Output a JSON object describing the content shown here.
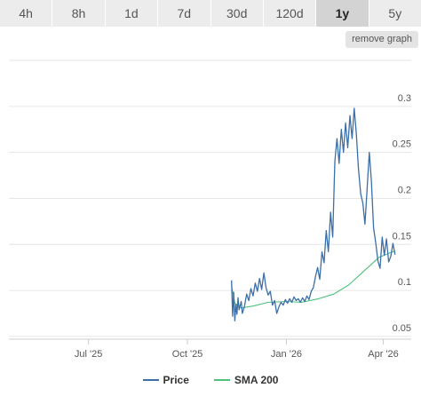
{
  "tabs": [
    {
      "label": "4h",
      "active": false
    },
    {
      "label": "8h",
      "active": false
    },
    {
      "label": "1d",
      "active": false
    },
    {
      "label": "7d",
      "active": false
    },
    {
      "label": "30d",
      "active": false
    },
    {
      "label": "120d",
      "active": false
    },
    {
      "label": "1y",
      "active": true
    },
    {
      "label": "5y",
      "active": false
    }
  ],
  "remove_graph_label": "remove graph",
  "colors": {
    "price": "#3b6fa8",
    "sma": "#4cc27a",
    "grid": "#e6e6e6",
    "tab_bg": "#ececec",
    "tab_active_bg": "#d3d3d3"
  },
  "chart_data": {
    "type": "line",
    "x_ticks": [
      "Jul '25",
      "Oct '25",
      "Jan '26",
      "Apr '26"
    ],
    "y_ticks": [
      "0.3",
      "0.25",
      "0.2",
      "0.15",
      "0.1",
      "0.05"
    ],
    "ylim": [
      0.047,
      0.35
    ],
    "xlim": [
      "2025-04-18",
      "2026-04-27"
    ],
    "grid": true,
    "legend": "bottom",
    "series": [
      {
        "name": "Price",
        "color": "#3b6fa8",
        "points": [
          [
            "2025-11-11",
            0.111
          ],
          [
            "2025-11-12",
            0.072
          ],
          [
            "2025-11-13",
            0.098
          ],
          [
            "2025-11-14",
            0.067
          ],
          [
            "2025-11-15",
            0.085
          ],
          [
            "2025-11-16",
            0.074
          ],
          [
            "2025-11-17",
            0.092
          ],
          [
            "2025-11-18",
            0.079
          ],
          [
            "2025-11-20",
            0.088
          ],
          [
            "2025-11-21",
            0.075
          ],
          [
            "2025-11-23",
            0.083
          ],
          [
            "2025-11-25",
            0.096
          ],
          [
            "2025-11-27",
            0.089
          ],
          [
            "2025-11-29",
            0.102
          ],
          [
            "2025-12-01",
            0.094
          ],
          [
            "2025-12-03",
            0.108
          ],
          [
            "2025-12-05",
            0.099
          ],
          [
            "2025-12-07",
            0.113
          ],
          [
            "2025-12-09",
            0.101
          ],
          [
            "2025-12-11",
            0.119
          ],
          [
            "2025-12-13",
            0.103
          ],
          [
            "2025-12-15",
            0.095
          ],
          [
            "2025-12-17",
            0.099
          ],
          [
            "2025-12-19",
            0.084
          ],
          [
            "2025-12-21",
            0.089
          ],
          [
            "2025-12-23",
            0.075
          ],
          [
            "2025-12-25",
            0.082
          ],
          [
            "2025-12-27",
            0.087
          ],
          [
            "2025-12-29",
            0.084
          ],
          [
            "2025-12-31",
            0.09
          ],
          [
            "2026-01-02",
            0.086
          ],
          [
            "2026-01-04",
            0.091
          ],
          [
            "2026-01-06",
            0.087
          ],
          [
            "2026-01-08",
            0.093
          ],
          [
            "2026-01-10",
            0.089
          ],
          [
            "2026-01-12",
            0.091
          ],
          [
            "2026-01-14",
            0.087
          ],
          [
            "2026-01-16",
            0.092
          ],
          [
            "2026-01-18",
            0.088
          ],
          [
            "2026-01-20",
            0.094
          ],
          [
            "2026-01-22",
            0.09
          ],
          [
            "2026-01-24",
            0.099
          ],
          [
            "2026-01-26",
            0.103
          ],
          [
            "2026-01-28",
            0.115
          ],
          [
            "2026-01-30",
            0.125
          ],
          [
            "2026-02-01",
            0.112
          ],
          [
            "2026-02-03",
            0.142
          ],
          [
            "2026-02-05",
            0.13
          ],
          [
            "2026-02-07",
            0.165
          ],
          [
            "2026-02-09",
            0.142
          ],
          [
            "2026-02-11",
            0.185
          ],
          [
            "2026-02-13",
            0.158
          ],
          [
            "2026-02-15",
            0.24
          ],
          [
            "2026-02-17",
            0.265
          ],
          [
            "2026-02-19",
            0.238
          ],
          [
            "2026-02-21",
            0.275
          ],
          [
            "2026-02-23",
            0.25
          ],
          [
            "2026-02-25",
            0.282
          ],
          [
            "2026-02-27",
            0.255
          ],
          [
            "2026-03-01",
            0.29
          ],
          [
            "2026-03-03",
            0.265
          ],
          [
            "2026-03-05",
            0.298
          ],
          [
            "2026-03-07",
            0.27
          ],
          [
            "2026-03-09",
            0.232
          ],
          [
            "2026-03-11",
            0.205
          ],
          [
            "2026-03-13",
            0.195
          ],
          [
            "2026-03-15",
            0.172
          ],
          [
            "2026-03-17",
            0.21
          ],
          [
            "2026-03-19",
            0.25
          ],
          [
            "2026-03-21",
            0.218
          ],
          [
            "2026-03-23",
            0.168
          ],
          [
            "2026-03-25",
            0.152
          ],
          [
            "2026-03-27",
            0.132
          ],
          [
            "2026-03-29",
            0.124
          ],
          [
            "2026-03-31",
            0.158
          ],
          [
            "2026-04-02",
            0.138
          ],
          [
            "2026-04-04",
            0.156
          ],
          [
            "2026-04-06",
            0.131
          ],
          [
            "2026-04-08",
            0.137
          ],
          [
            "2026-04-10",
            0.151
          ],
          [
            "2026-04-12",
            0.139
          ]
        ]
      },
      {
        "name": "SMA 200",
        "color": "#4cc27a",
        "points": [
          [
            "2025-11-11",
            0.105
          ],
          [
            "2025-11-14",
            0.086
          ],
          [
            "2025-11-20",
            0.081
          ],
          [
            "2025-12-01",
            0.083
          ],
          [
            "2025-12-15",
            0.087
          ],
          [
            "2026-01-01",
            0.088
          ],
          [
            "2026-01-15",
            0.087
          ],
          [
            "2026-01-31",
            0.091
          ],
          [
            "2026-02-14",
            0.096
          ],
          [
            "2026-02-28",
            0.106
          ],
          [
            "2026-03-14",
            0.121
          ],
          [
            "2026-03-28",
            0.136
          ],
          [
            "2026-04-12",
            0.143
          ]
        ]
      }
    ]
  }
}
